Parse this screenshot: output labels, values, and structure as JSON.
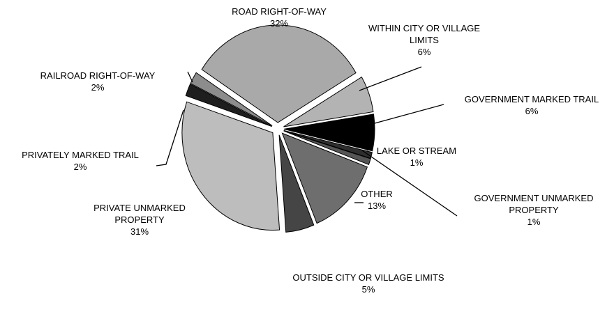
{
  "chart_data": {
    "type": "pie",
    "categories": [
      "ROAD RIGHT-OF-WAY",
      "WITHIN CITY OR VILLAGE LIMITS",
      "GOVERNMENT MARKED TRAIL",
      "LAKE OR STREAM",
      "GOVERNMENT UNMARKED PROPERTY",
      "OTHER",
      "OUTSIDE CITY OR VILLAGE LIMITS",
      "PRIVATE UNMARKED PROPERTY",
      "PRIVATELY MARKED TRAIL",
      "RAILROAD RIGHT-OF-WAY"
    ],
    "values": [
      32,
      6,
      6,
      1,
      1,
      13,
      5,
      31,
      2,
      2
    ],
    "value_labels": [
      "32%",
      "6%",
      "6%",
      "1%",
      "1%",
      "13%",
      "5%",
      "31%",
      "2%",
      "2%"
    ],
    "colors": [
      "#a9a9a9",
      "#b3b3b3",
      "#000000",
      "#2e2e2e",
      "#555555",
      "#6e6e6e",
      "#454545",
      "#bdbdbd",
      "#1e1e1e",
      "#8c8c8c"
    ]
  }
}
